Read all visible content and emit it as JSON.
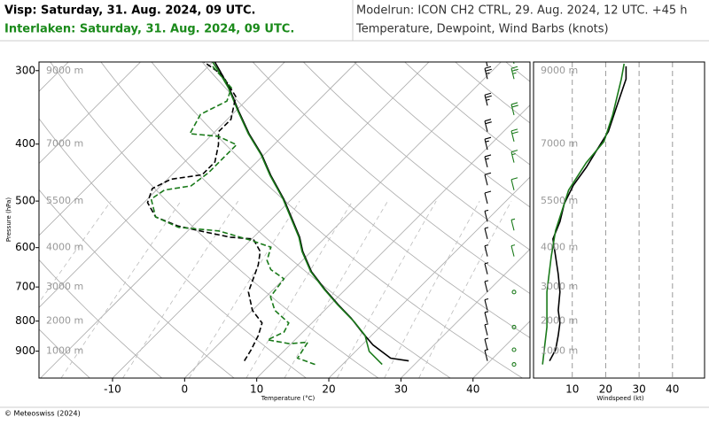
{
  "header": {
    "title": "Visp: Saturday, 31. Aug. 2024, 09 UTC.",
    "title2": "Interlaken: Saturday, 31. Aug. 2024, 09 UTC.",
    "modelrun": "Modelrun: ICON CH2 CTRL, 29. Aug. 2024, 12 UTC. +45 h",
    "subtitle": "Temperature, Dewpoint, Wind Barbs (knots)",
    "title_color": "#000000",
    "title2_color": "#1a8a1a"
  },
  "footer": "© Meteoswiss (2024)",
  "chart_data": [
    {
      "type": "skewt",
      "xlabel": "Temperature (°C)",
      "ylabel": "Pressure (hPa)",
      "xlim": [
        -20.2,
        47.9
      ],
      "ylim": [
        1000,
        290
      ],
      "log_y": true,
      "skew": 45,
      "xticks": [
        -10,
        0,
        10,
        20,
        30,
        40
      ],
      "yticks": [
        300,
        400,
        500,
        600,
        700,
        800,
        900
      ],
      "height_labels": [
        {
          "value": 300,
          "label": "9000 m"
        },
        {
          "value": 400,
          "label": "7000 m"
        },
        {
          "value": 500,
          "label": "5500 m"
        },
        {
          "value": 600,
          "label": "4000 m"
        },
        {
          "value": 700,
          "label": "3000 m"
        },
        {
          "value": 800,
          "label": "2000 m"
        },
        {
          "value": 900,
          "label": "1000 m"
        }
      ],
      "series": [
        {
          "color": "#000000",
          "dash": false,
          "pressure": [
            935,
            925,
            878,
            835,
            791,
            750,
            706,
            659,
            609,
            576,
            534,
            496,
            452,
            417,
            384,
            352,
            321,
            300,
            290
          ],
          "values": [
            28.7,
            25.8,
            21.5,
            18.2,
            14.8,
            11.1,
            7.1,
            2.8,
            -1.2,
            -3.6,
            -7.4,
            -11.1,
            -16.2,
            -20.3,
            -25.0,
            -29.5,
            -34.1,
            -37.8,
            -39.7
          ]
        },
        {
          "color": "#1a7a1a",
          "dash": false,
          "pressure": [
            948,
            901,
            846,
            802,
            750,
            706,
            659,
            609,
            576,
            534,
            496,
            452,
            417,
            384,
            352,
            321,
            300,
            290
          ],
          "values": [
            25.5,
            21.9,
            19.1,
            15.7,
            11.0,
            7.0,
            2.7,
            -1.3,
            -3.7,
            -7.5,
            -11.2,
            -16.3,
            -20.4,
            -25.1,
            -29.6,
            -34.2,
            -38.0,
            -40.0
          ]
        },
        {
          "color": "#000000",
          "dash": true,
          "pressure": [
            935,
            895,
            846,
            806,
            767,
            714,
            642,
            609,
            580,
            576,
            564,
            551,
            532,
            503,
            476,
            459,
            451,
            429,
            401,
            381,
            363,
            332,
            305,
            290
          ],
          "values": [
            5.9,
            5.3,
            4.3,
            3.1,
            0,
            -3.1,
            -5.5,
            -7.1,
            -9.8,
            -13.2,
            -17.6,
            -22.1,
            -26.4,
            -29.5,
            -30.8,
            -29.5,
            -25.8,
            -25.8,
            -27.7,
            -29.5,
            -29.5,
            -32.0,
            -36.9,
            -41.2
          ]
        },
        {
          "color": "#1a7a1a",
          "dash": true,
          "pressure": [
            948,
            925,
            869,
            874,
            861,
            835,
            806,
            767,
            727,
            678,
            654,
            631,
            599,
            582,
            562,
            554,
            532,
            496,
            479,
            471,
            447,
            424,
            401,
            388,
            384,
            356,
            338,
            321,
            295
          ],
          "values": [
            16.2,
            12.9,
            12.1,
            9.8,
            6.2,
            7.4,
            6.8,
            3.1,
            0.6,
            0,
            -3.1,
            -4.9,
            -6.2,
            -10.2,
            -15.7,
            -21.8,
            -26.4,
            -29.5,
            -28.9,
            -25.8,
            -25.2,
            -25.2,
            -25.2,
            -28.9,
            -33.2,
            -34.4,
            -32.6,
            -33.8,
            -39.4
          ]
        }
      ]
    },
    {
      "type": "line",
      "xlabel": "Windspeed (kt)",
      "xlim": [
        -1.6,
        49.6
      ],
      "ylim": [
        1000,
        290
      ],
      "log_y": true,
      "xticks": [
        10,
        20,
        30,
        40
      ],
      "grid": true,
      "series": [
        {
          "color": "#000000",
          "barb_x": 550,
          "pressure": [
            935,
            895,
            846,
            806,
            767,
            714,
            666,
            621,
            580,
            542,
            505,
            470,
            438,
            409,
            381,
            344,
            310,
            295
          ],
          "values": [
            3.2,
            5.0,
            5.8,
            6.3,
            5.8,
            6.3,
            5.8,
            5.0,
            4.2,
            6.3,
            7.6,
            10.3,
            14.2,
            17.4,
            20.8,
            23.4,
            26.1,
            26.1
          ]
        },
        {
          "color": "#1a7a1a",
          "barb_x": 580,
          "pressure": [
            948,
            895,
            819,
            714,
            621,
            561,
            479,
            430,
            396,
            357,
            310,
            292
          ],
          "values": [
            1.1,
            1.6,
            2.4,
            2.4,
            3.7,
            5.0,
            8.9,
            14.2,
            19.5,
            22.1,
            24.7,
            25.5
          ]
        }
      ]
    }
  ]
}
